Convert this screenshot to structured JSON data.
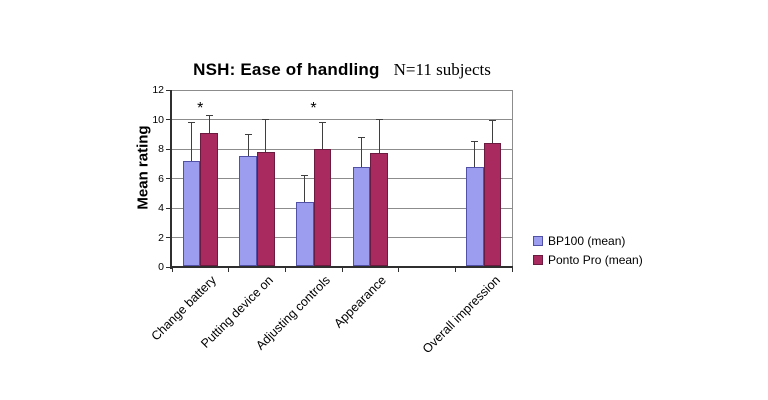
{
  "chart": {
    "title": "NSH: Ease of handling",
    "subtitle": "N=11 subjects",
    "ylabel": "Mean rating"
  },
  "chart_data": {
    "type": "bar",
    "title": "NSH: Ease of handling",
    "subtitle": "N=11 subjects",
    "xlabel": "",
    "ylabel": "Mean rating",
    "ylim": [
      0,
      12
    ],
    "yticks": [
      0,
      2,
      4,
      6,
      8,
      10,
      12
    ],
    "grid": true,
    "legend_position": "right",
    "categories": [
      "Change battery",
      "Putting device on",
      "Adjusting controls",
      "Appearance",
      "",
      "Overall impression"
    ],
    "series": [
      {
        "name": "BP100 (mean)",
        "color": "#9d9df0",
        "border": "#5151a8",
        "values": [
          7.2,
          7.5,
          4.4,
          6.8,
          null,
          6.8
        ],
        "error_top": [
          9.8,
          9.0,
          6.2,
          8.8,
          null,
          8.5
        ]
      },
      {
        "name": "Ponto Pro (mean)",
        "color": "#a82a5f",
        "border": "#6b1a40",
        "values": [
          9.1,
          7.8,
          8.0,
          7.7,
          null,
          8.4
        ],
        "error_top": [
          10.3,
          10.0,
          9.8,
          10.0,
          null,
          9.9
        ]
      }
    ],
    "annotations": [
      {
        "text": "*",
        "category_index": 0,
        "series_index": 1,
        "dx": -9
      },
      {
        "text": "*",
        "category_index": 2,
        "series_index": 1,
        "dx": -9
      }
    ]
  },
  "colors": {
    "background": "#ffffff",
    "grid": "#8c8c8c",
    "plot_border": "#8c8c8c",
    "axis": "#2f2f2f",
    "error_bar": "#3f3f3f",
    "text": "#000000"
  }
}
